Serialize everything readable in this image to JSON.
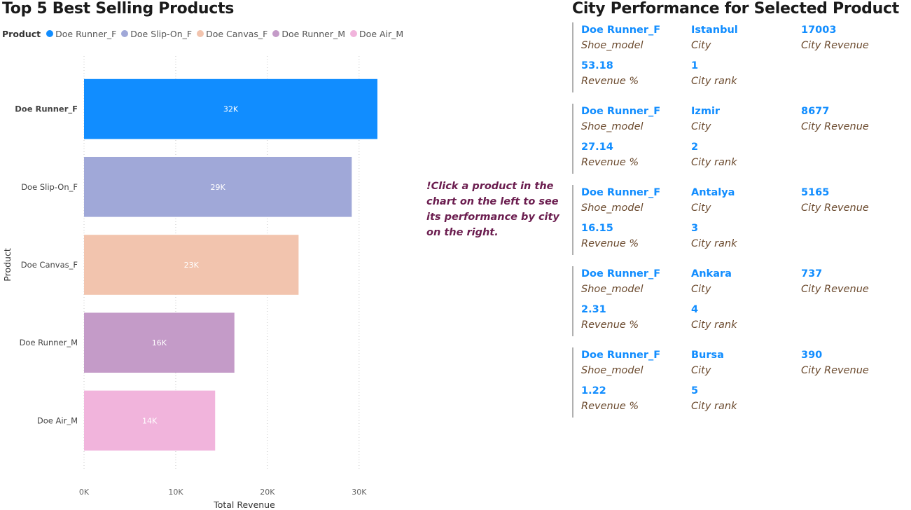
{
  "chart": {
    "title": "Top 5 Best Selling Products",
    "legend_title": "Product",
    "legend": [
      {
        "label": "Doe Runner_F",
        "color": "#118dff"
      },
      {
        "label": "Doe Slip-On_F",
        "color": "#a0a8d8"
      },
      {
        "label": "Doe Canvas_F",
        "color": "#f2c4ae"
      },
      {
        "label": "Doe Runner_M",
        "color": "#c49bc8"
      },
      {
        "label": "Doe Air_M",
        "color": "#f1b4dc"
      }
    ]
  },
  "chart_data": {
    "type": "bar",
    "orientation": "horizontal",
    "title": "Top 5 Best Selling Products",
    "xlabel": "Total Revenue",
    "ylabel": "Product",
    "categories": [
      "Doe Runner_F",
      "Doe Slip-On_F",
      "Doe Canvas_F",
      "Doe Runner_M",
      "Doe Air_M"
    ],
    "values": [
      32000,
      29200,
      23400,
      16400,
      14300
    ],
    "data_labels": [
      "32K",
      "29K",
      "23K",
      "16K",
      "14K"
    ],
    "colors": [
      "#118dff",
      "#a0a8d8",
      "#f2c4ae",
      "#c49bc8",
      "#f1b4dc"
    ],
    "selected": "Doe Runner_F",
    "xlim": [
      0,
      32000
    ],
    "xticks": [
      0,
      10000,
      20000,
      30000
    ],
    "xtick_labels": [
      "0K",
      "10K",
      "20K",
      "30K"
    ],
    "grid": true
  },
  "hint": "!Click a product in the chart on the left to see its performance by city on the right.",
  "panel": {
    "title": "City Performance for Selected Product",
    "labels": {
      "shoe_model": "Shoe_model",
      "city": "City",
      "city_revenue": "City Revenue",
      "revenue_pct": "Revenue %",
      "city_rank": "City rank"
    },
    "cards": [
      {
        "shoe_model": "Doe Runner_F",
        "city": "Istanbul",
        "city_revenue": "17003",
        "revenue_pct": "53.18",
        "city_rank": "1"
      },
      {
        "shoe_model": "Doe Runner_F",
        "city": "Izmir",
        "city_revenue": "8677",
        "revenue_pct": "27.14",
        "city_rank": "2"
      },
      {
        "shoe_model": "Doe Runner_F",
        "city": "Antalya",
        "city_revenue": "5165",
        "revenue_pct": "16.15",
        "city_rank": "3"
      },
      {
        "shoe_model": "Doe Runner_F",
        "city": "Ankara",
        "city_revenue": "737",
        "revenue_pct": "2.31",
        "city_rank": "4"
      },
      {
        "shoe_model": "Doe Runner_F",
        "city": "Bursa",
        "city_revenue": "390",
        "revenue_pct": "1.22",
        "city_rank": "5"
      }
    ]
  }
}
